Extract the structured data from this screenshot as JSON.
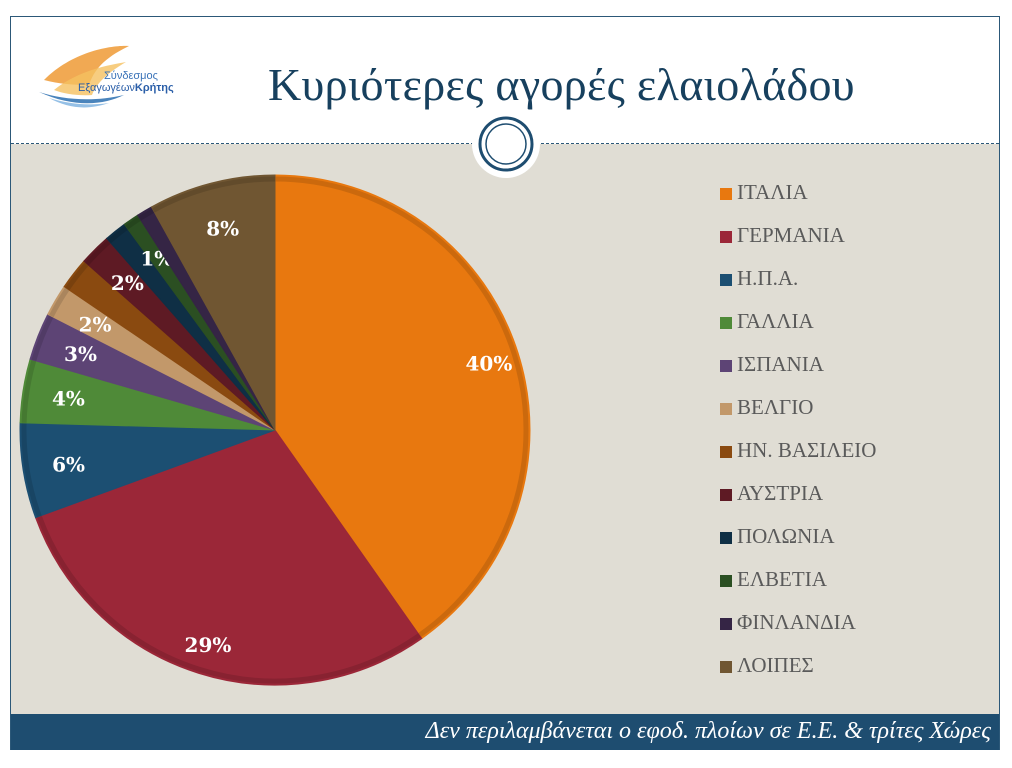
{
  "header": {
    "title": "Κυριότερες αγορές ελαιολάδου",
    "logo_line1": "Σύνδεσμος",
    "logo_line2a": "Εξαγωγέων",
    "logo_line2b": "Κρήτης"
  },
  "footer": {
    "note": "Δεν περιλαμβάνεται ο εφοδ. πλοίων σε Ε.Ε. & τρίτες Χώρες"
  },
  "chart_data": {
    "type": "pie",
    "title": "Κυριότερες αγορές ελαιολάδου",
    "categories": [
      "ΙΤΑΛΙΑ",
      "ΓΕΡΜΑΝΙΑ",
      "Η.Π.Α.",
      "ΓΑΛΛΙΑ",
      "ΙΣΠΑΝΙΑ",
      "ΒΕΛΓΙΟ",
      "ΗΝ. ΒΑΣΙΛΕΙΟ",
      "ΑΥΣΤΡΙΑ",
      "ΠΟΛΩΝΙΑ",
      "ΕΛΒΕΤΙΑ",
      "ΦΙΝΛΑΝΔΙΑ",
      "ΛΟΙΠΕΣ"
    ],
    "values": [
      40,
      29,
      6,
      4,
      3,
      2,
      2,
      2,
      1.4,
      1,
      1,
      8
    ],
    "data_labels": [
      "40%",
      "29%",
      "6%",
      "4%",
      "3%",
      "2%",
      "",
      "2%",
      "",
      "1%",
      "",
      "8%"
    ],
    "colors": [
      "#e8780f",
      "#9b2738",
      "#1c4f72",
      "#4f8a38",
      "#5d4475",
      "#c2986a",
      "#8a4a10",
      "#5e1a24",
      "#0f2f45",
      "#2b4f22",
      "#352545",
      "#705632"
    ],
    "legend_position": "right"
  }
}
